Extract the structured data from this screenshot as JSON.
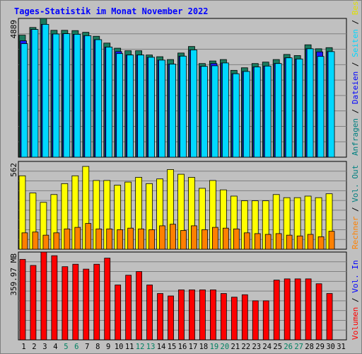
{
  "title": "Tages-Statistik im Monat November 2022",
  "colors": {
    "background": "#c0c0c0",
    "title": "#0000ff",
    "anfragen": "#008080",
    "anfragen_fill": "#1a7a5e",
    "dateien": "#0000ff",
    "dateien_fill": "#1a1aff",
    "seiten": "#00d8ff",
    "besuche": "#ffff00",
    "rechner": "#ff8000",
    "volumen": "#ff0000",
    "weekend_label": "#008060"
  },
  "weekend_days": [
    5,
    6,
    12,
    13,
    19,
    20,
    26,
    27
  ],
  "right_labels": {
    "top": [
      {
        "text": "Anfragen",
        "color": "#008080"
      },
      {
        "text": " / ",
        "color": "#000000"
      },
      {
        "text": "Dateien",
        "color": "#0000ff"
      },
      {
        "text": " / ",
        "color": "#000000"
      },
      {
        "text": "Seiten",
        "color": "#00d8ff"
      },
      {
        "text": " / ",
        "color": "#000000"
      },
      {
        "text": "Besuche",
        "color": "#e0e000"
      }
    ],
    "mid": [
      {
        "text": "Rechner",
        "color": "#ff8000"
      },
      {
        "text": " / ",
        "color": "#000000"
      },
      {
        "text": "Vol. Out",
        "color": "#008080"
      }
    ],
    "bottom": [
      {
        "text": "Volumen",
        "color": "#ff0000"
      },
      {
        "text": " / ",
        "color": "#000000"
      },
      {
        "text": "Vol. In",
        "color": "#0000ff"
      }
    ]
  },
  "chart_data": [
    {
      "type": "bar",
      "name": "top",
      "y_max_label": "4889",
      "ylim": [
        0,
        4889
      ],
      "categories": [
        "1",
        "2",
        "3",
        "4",
        "5",
        "6",
        "7",
        "8",
        "9",
        "10",
        "11",
        "12",
        "13",
        "14",
        "15",
        "16",
        "17",
        "18",
        "19",
        "20",
        "21",
        "22",
        "23",
        "24",
        "25",
        "26",
        "27",
        "28",
        "29",
        "30",
        "31"
      ],
      "series": [
        {
          "name": "Anfragen",
          "values": [
            4300,
            4570,
            4889,
            4470,
            4470,
            4460,
            4400,
            4260,
            4020,
            3840,
            3750,
            3750,
            3600,
            3540,
            3440,
            3670,
            3900,
            3300,
            3390,
            3440,
            3060,
            3150,
            3300,
            3350,
            3440,
            3620,
            3580,
            3960,
            3820,
            3860,
            null
          ]
        },
        {
          "name": "Dateien",
          "values": [
            4100,
            4500,
            4680,
            4340,
            4350,
            4330,
            4280,
            4140,
            3880,
            3720,
            3600,
            3600,
            3520,
            3420,
            3280,
            3560,
            3780,
            3200,
            3300,
            3320,
            2940,
            3020,
            3180,
            3210,
            3300,
            3500,
            3460,
            3820,
            3710,
            3720,
            null
          ]
        },
        {
          "name": "Seiten",
          "values": [
            4000,
            4500,
            4680,
            4340,
            4350,
            4330,
            4280,
            4140,
            3880,
            3650,
            3600,
            3600,
            3520,
            3420,
            3280,
            3560,
            3780,
            3200,
            3220,
            3320,
            2940,
            3020,
            3180,
            3210,
            3300,
            3500,
            3460,
            3820,
            3550,
            3720,
            null
          ]
        }
      ]
    },
    {
      "type": "bar",
      "name": "middle",
      "y_max_label": "562",
      "ylim": [
        0,
        562
      ],
      "categories": [
        "1",
        "2",
        "3",
        "4",
        "5",
        "6",
        "7",
        "8",
        "9",
        "10",
        "11",
        "12",
        "13",
        "14",
        "15",
        "16",
        "17",
        "18",
        "19",
        "20",
        "21",
        "22",
        "23",
        "24",
        "25",
        "26",
        "27",
        "28",
        "29",
        "30",
        "31"
      ],
      "series": [
        {
          "name": "Besuche",
          "values": [
            470,
            360,
            300,
            350,
            420,
            470,
            530,
            440,
            440,
            410,
            430,
            460,
            420,
            450,
            510,
            480,
            460,
            390,
            440,
            380,
            340,
            310,
            310,
            310,
            350,
            330,
            330,
            340,
            330,
            355,
            null
          ]
        },
        {
          "name": "Rechner",
          "values": [
            105,
            110,
            90,
            105,
            130,
            140,
            165,
            130,
            130,
            125,
            135,
            130,
            125,
            150,
            160,
            120,
            150,
            125,
            140,
            135,
            130,
            105,
            100,
            95,
            100,
            90,
            85,
            95,
            80,
            115,
            null
          ]
        }
      ]
    },
    {
      "type": "bar",
      "name": "bottom",
      "y_max_label": "359.97 MB",
      "ylim": [
        0,
        359.97
      ],
      "categories": [
        "1",
        "2",
        "3",
        "4",
        "5",
        "6",
        "7",
        "8",
        "9",
        "10",
        "11",
        "12",
        "13",
        "14",
        "15",
        "16",
        "17",
        "18",
        "19",
        "20",
        "21",
        "22",
        "23",
        "24",
        "25",
        "26",
        "27",
        "28",
        "29",
        "30",
        "31"
      ],
      "series": [
        {
          "name": "Volumen",
          "values": [
            330,
            305,
            360,
            345,
            300,
            310,
            290,
            310,
            335,
            225,
            265,
            280,
            225,
            190,
            180,
            205,
            205,
            205,
            205,
            190,
            175,
            185,
            160,
            160,
            245,
            250,
            250,
            250,
            230,
            190,
            null
          ]
        }
      ]
    }
  ]
}
